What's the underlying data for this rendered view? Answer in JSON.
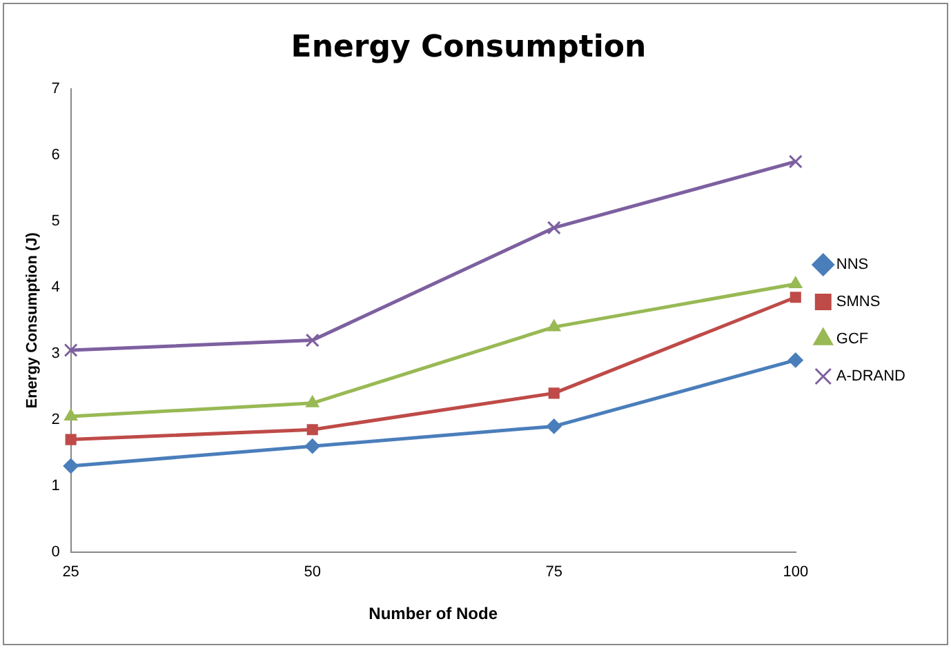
{
  "chart_data": {
    "type": "line",
    "title": "Energy Consumption",
    "xlabel": "Number of Node",
    "ylabel": "Energy Consumption (J)",
    "categories": [
      "25",
      "50",
      "75",
      "100"
    ],
    "series": [
      {
        "name": "NNS",
        "color": "#4a7ebb",
        "marker": "diamond",
        "values": [
          1.3,
          1.6,
          1.9,
          2.9
        ]
      },
      {
        "name": "SMNS",
        "color": "#be4b48",
        "marker": "square",
        "values": [
          1.7,
          1.85,
          2.4,
          3.85
        ]
      },
      {
        "name": "GCF",
        "color": "#98b954",
        "marker": "triangle",
        "values": [
          2.05,
          2.25,
          3.4,
          4.05
        ]
      },
      {
        "name": "A-DRAND",
        "color": "#7d60a0",
        "marker": "cross",
        "values": [
          3.05,
          3.2,
          4.9,
          5.9
        ]
      }
    ],
    "ylim": [
      0,
      7
    ],
    "yticks": [
      0,
      1,
      2,
      3,
      4,
      5,
      6,
      7
    ],
    "grid": false,
    "legend": "right",
    "line_style": "solid"
  }
}
